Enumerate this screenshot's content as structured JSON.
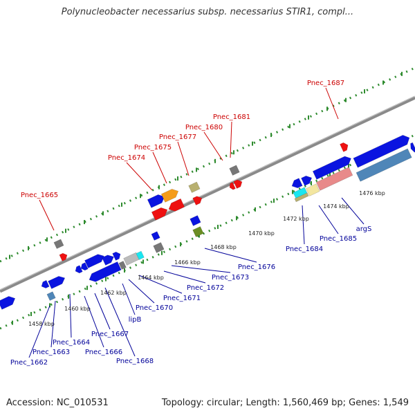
{
  "title": "Polynucleobacter necessarius subsp. necessarius STIR1, compl...",
  "footer": {
    "accession": "Accession: NC_010531",
    "summary": "Topology: circular; Length: 1,560,469 bp; Genes: 1,549"
  },
  "colors": {
    "backbone": "#8a8a8a",
    "tick_dots": "#2e8b2e",
    "label_red": "#cc0000",
    "label_blue": "#000099",
    "gene_blue": "#0a14e0",
    "gene_steel": "#4f86b8",
    "gene_red": "#ee1111",
    "gene_gray": "#777777",
    "gene_orange": "#f59c1a",
    "gene_olive": "#b8b070",
    "gene_green": "#6b8e23",
    "gene_cyan": "#19e6f0",
    "gene_cream": "#f3e6a0",
    "gene_pink": "#e88a8a",
    "gene_silver": "#bbbbbb"
  },
  "scale_labels": [
    "1458 kbp",
    "1460 kbp",
    "1462 kbp",
    "1464 kbp",
    "1466 kbp",
    "1468 kbp",
    "1470 kbp",
    "1472 kbp",
    "1474 kbp",
    "1476 kbp"
  ],
  "top_labels": [
    "Pnec_1665",
    "Pnec_1674",
    "Pnec_1675",
    "Pnec_1677",
    "Pnec_1680",
    "Pnec_1681",
    "Pnec_1687"
  ],
  "bottom_labels": [
    "Pnec_1662",
    "Pnec_1663",
    "Pnec_1664",
    "Pnec_1666",
    "Pnec_1667",
    "Pnec_1668",
    "lipB",
    "Pnec_1670",
    "Pnec_1671",
    "Pnec_1672",
    "Pnec_1673",
    "Pnec_1676",
    "Pnec_1684",
    "Pnec_1685",
    "argS"
  ]
}
